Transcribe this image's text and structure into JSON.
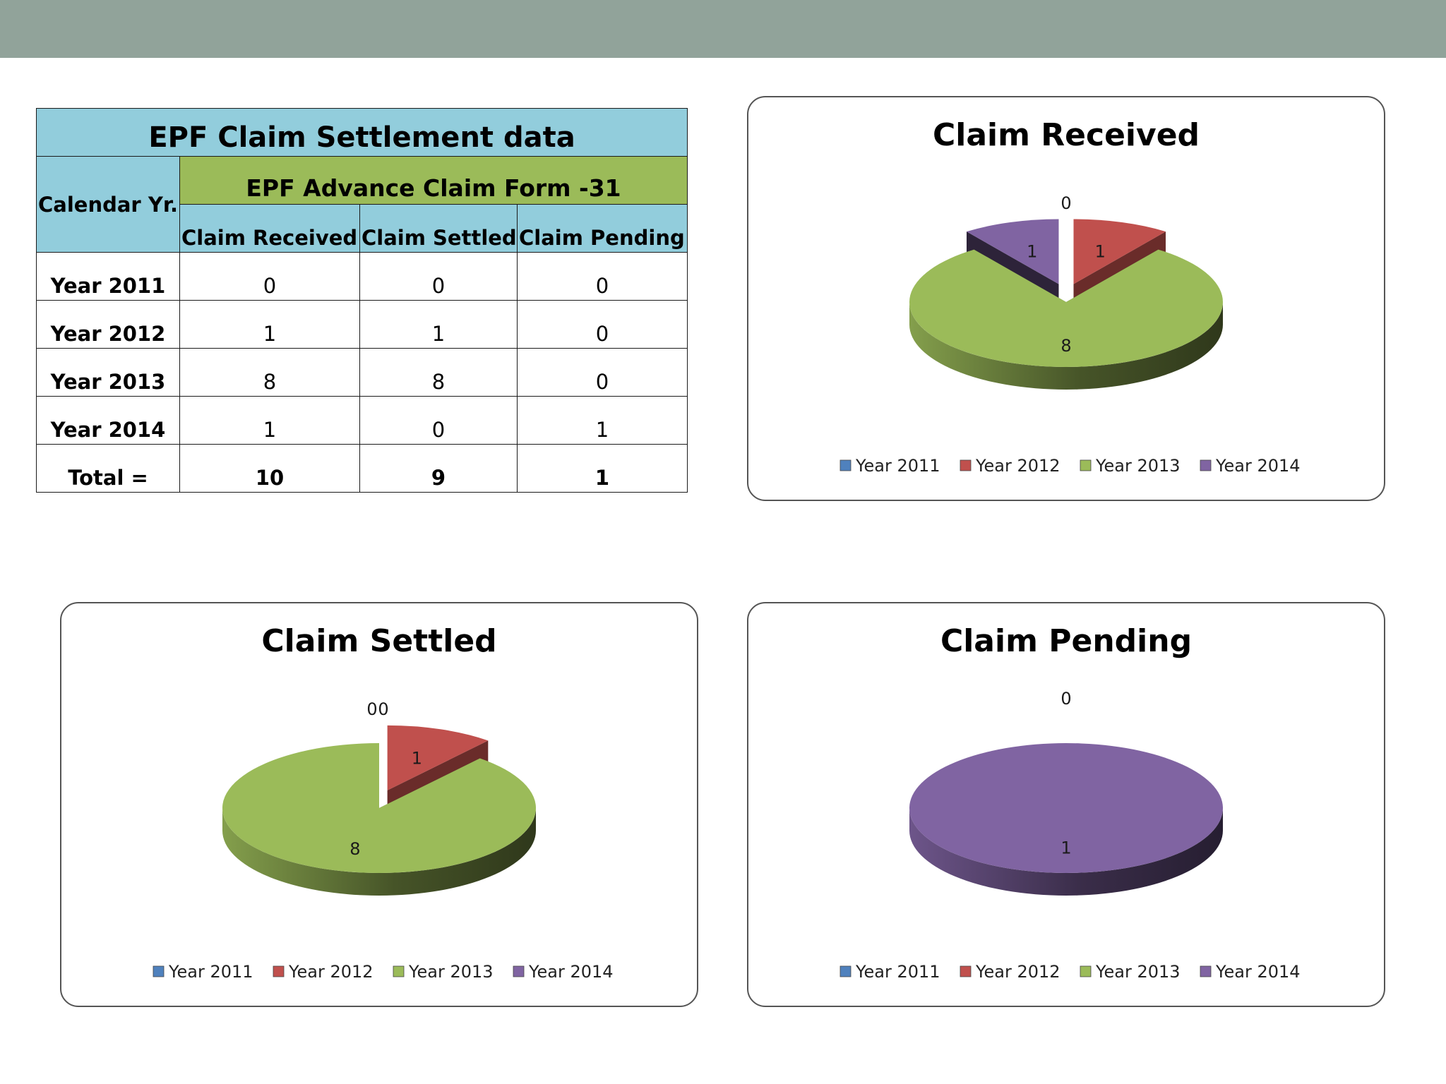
{
  "table": {
    "title": "EPF Claim Settlement  data",
    "calendar_header": "Calendar Yr.",
    "form_header": "EPF Advance Claim Form -31",
    "columns": [
      "Claim Received",
      "Claim Settled",
      "Claim Pending"
    ],
    "rows": [
      {
        "label": "Year 2011",
        "received": "0",
        "settled": "0",
        "pending": "0"
      },
      {
        "label": "Year 2012",
        "received": "1",
        "settled": "1",
        "pending": "0"
      },
      {
        "label": "Year 2013",
        "received": "8",
        "settled": "8",
        "pending": "0"
      },
      {
        "label": "Year 2014",
        "received": "1",
        "settled": "0",
        "pending": "1"
      }
    ],
    "total": {
      "label": "Total =",
      "received": "10",
      "settled": "9",
      "pending": "1"
    }
  },
  "colors": {
    "header_blue": "#92cddc",
    "header_green": "#9bbb59",
    "top_band": "#91a39a",
    "series": [
      "#4f81bd",
      "#c0504d",
      "#9bbb59",
      "#8064a2"
    ]
  },
  "chart_data": [
    {
      "id": "received",
      "type": "pie",
      "title": "Claim Received",
      "categories": [
        "Year 2011",
        "Year 2012",
        "Year 2013",
        "Year 2014"
      ],
      "values": [
        0,
        1,
        8,
        1
      ],
      "labels": [
        "0",
        "1",
        "8",
        "1"
      ],
      "legend": "bottom"
    },
    {
      "id": "settled",
      "type": "pie",
      "title": "Claim Settled",
      "categories": [
        "Year 2011",
        "Year 2012",
        "Year 2013",
        "Year 2014"
      ],
      "values": [
        0,
        1,
        8,
        0
      ],
      "labels": [
        "0",
        "1",
        "8",
        "0"
      ],
      "legend": "bottom"
    },
    {
      "id": "pending",
      "type": "pie",
      "title": "Claim Pending",
      "categories": [
        "Year 2011",
        "Year 2012",
        "Year 2013",
        "Year 2014"
      ],
      "values": [
        0,
        0,
        0,
        1
      ],
      "labels": [
        "0",
        "",
        "",
        "1"
      ],
      "legend": "bottom"
    }
  ]
}
